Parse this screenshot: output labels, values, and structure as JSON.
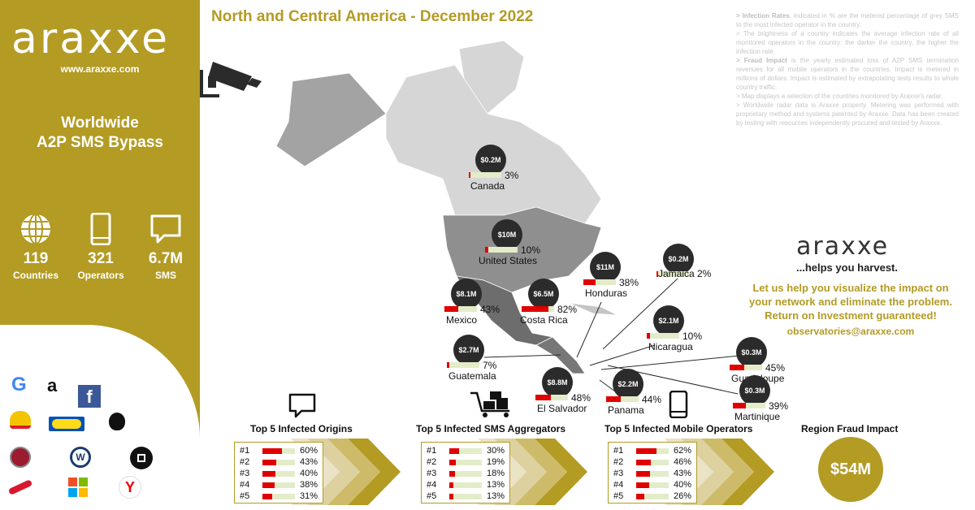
{
  "sidebar": {
    "logo": "araxxe",
    "url": "www.araxxe.com",
    "headline_1": "Worldwide",
    "headline_2": "A2P SMS Bypass",
    "stats": [
      {
        "icon": "globe-icon",
        "value": "119",
        "label": "Countries"
      },
      {
        "icon": "phone-icon",
        "value": "321",
        "label": "Operators"
      },
      {
        "icon": "message-icon",
        "value": "6.7M",
        "label": "SMS"
      }
    ],
    "brands": [
      "google-logo",
      "amazon-logo",
      "facebook-logo",
      "shell-logo",
      "ikea-logo",
      "apple-logo",
      "fiat-logo",
      "volkswagen-logo",
      "uber-logo",
      "iberia-logo",
      "microsoft-logo",
      "yandex-logo"
    ]
  },
  "title": "North and Central America - December 2022",
  "notes": [
    {
      "bold": "> Infection Rates",
      "text": ", indicated in % are the metered percentage of grey SMS to the most infected operator in the country."
    },
    {
      "bold": "",
      "text": "> The brightness of a country indicates the average infection rate of all monitored operators in the country: the darker the country, the higher the infection rate."
    },
    {
      "bold": "> Fraud Impact",
      "text": " is the yearly estimated loss of A2P SMS termination revenues for all mobile operators in the countries. Impact is metered in millions of dollars. Impact is estimated by extrapolating tests results to whole country traffic."
    },
    {
      "bold": "",
      "text": "> Map displays a selection of the countries monitored by Araxxe's radar."
    },
    {
      "bold": "",
      "text": "> Worldwide radar data is Araxxe property. Metering was performed with proprietary method and systems patented by Araxxe. Data has been created by testing with resources independently procured and tested by Araxxe."
    }
  ],
  "promo": {
    "brand": "araxxe",
    "tagline": "...helps you harvest.",
    "pitch_1": "Let us help you visualize the impact on",
    "pitch_2": "your network and eliminate the problem.",
    "pitch_3": "Return on Investment guaranteed!",
    "email": "observatories@araxxe.com"
  },
  "chart_data": [
    {
      "type": "map",
      "title": "North and Central America - December 2022",
      "countries": [
        {
          "name": "Canada",
          "impact": "$0.2M",
          "rate": 3
        },
        {
          "name": "United States",
          "impact": "$10M",
          "rate": 10
        },
        {
          "name": "Mexico",
          "impact": "$8.1M",
          "rate": 43
        },
        {
          "name": "Costa Rica",
          "impact": "$6.5M",
          "rate": 82
        },
        {
          "name": "Honduras",
          "impact": "$11M",
          "rate": 38
        },
        {
          "name": "Jamaica",
          "impact": "$0.2M",
          "rate": 2
        },
        {
          "name": "Nicaragua",
          "impact": "$2.1M",
          "rate": 10
        },
        {
          "name": "Guatemala",
          "impact": "$2.7M",
          "rate": 7
        },
        {
          "name": "Guadeloupe",
          "impact": "$0.3M",
          "rate": 45
        },
        {
          "name": "El Salvador",
          "impact": "$8.8M",
          "rate": 48
        },
        {
          "name": "Panama",
          "impact": "$2.2M",
          "rate": 44
        },
        {
          "name": "Martinique",
          "impact": "$0.3M",
          "rate": 39
        }
      ]
    },
    {
      "type": "bar",
      "title": "Top 5 Infected Origins",
      "categories": [
        "#1",
        "#2",
        "#3",
        "#4",
        "#5"
      ],
      "values": [
        60,
        43,
        40,
        38,
        31
      ]
    },
    {
      "type": "bar",
      "title": "Top 5 Infected SMS Aggregators",
      "categories": [
        "#1",
        "#2",
        "#3",
        "#4",
        "#5"
      ],
      "values": [
        30,
        19,
        18,
        13,
        13
      ]
    },
    {
      "type": "bar",
      "title": "Top 5 Infected Mobile Operators",
      "categories": [
        "#1",
        "#2",
        "#3",
        "#4",
        "#5"
      ],
      "values": [
        62,
        46,
        43,
        40,
        26
      ]
    }
  ],
  "region_impact": {
    "title": "Region Fraud Impact",
    "value": "$54M"
  },
  "colors": {
    "gold": "#b39b24",
    "bar": "#e00000",
    "track": "#e3ecc9",
    "bubble": "#2b2b2b"
  }
}
